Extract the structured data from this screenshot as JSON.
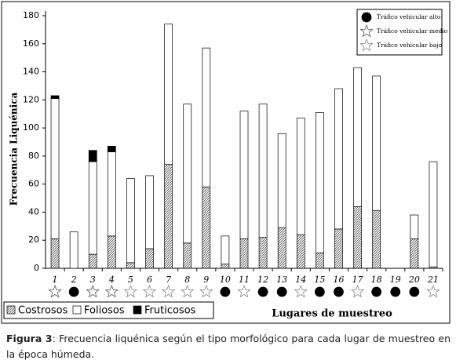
{
  "chart_data": {
    "type": "bar",
    "stacked": true,
    "y_label": "Frecuencia Liquénica",
    "x_label": "Lugares de muestreo",
    "categories": [
      "1",
      "2",
      "3",
      "4",
      "5",
      "6",
      "7",
      "8",
      "9",
      "10",
      "11",
      "12",
      "13",
      "14",
      "15",
      "16",
      "17",
      "18",
      "19",
      "20",
      "21"
    ],
    "series": [
      {
        "name": "Costrosos",
        "color": "#888888",
        "hatch": true,
        "values": [
          21,
          0,
          10,
          23,
          4,
          14,
          74,
          18,
          58,
          3,
          21,
          22,
          29,
          24,
          11,
          28,
          44,
          41,
          0,
          21,
          1
        ]
      },
      {
        "name": "Foliosos",
        "color": "#ffffff",
        "hatch": false,
        "values": [
          100,
          26,
          66,
          60,
          60,
          52,
          100,
          99,
          99,
          20,
          91,
          95,
          67,
          83,
          100,
          100,
          99,
          96,
          0,
          17,
          75
        ]
      },
      {
        "name": "Fruticosos",
        "color": "#000000",
        "hatch": false,
        "values": [
          2,
          0,
          8,
          4,
          0,
          0,
          0,
          0,
          0,
          0,
          0,
          0,
          0,
          0,
          0,
          0,
          0,
          0,
          0,
          0,
          0
        ]
      }
    ],
    "ylim": [
      0,
      180
    ],
    "yticks": [
      0,
      20,
      40,
      60,
      80,
      100,
      120,
      140,
      160,
      180
    ],
    "traffic_legend": [
      {
        "label": "Tráfico vehicular alto",
        "marker": "circle"
      },
      {
        "label": "Tráfico vehicular medio",
        "marker": "star"
      },
      {
        "label": "Tráfico vehicular bajo",
        "marker": "star"
      }
    ],
    "site_traffic": [
      1,
      0,
      1,
      1,
      2,
      2,
      2,
      2,
      2,
      0,
      2,
      0,
      0,
      2,
      0,
      0,
      2,
      0,
      0,
      0,
      2
    ]
  },
  "caption": {
    "label": "Figura 3",
    "text": ": Frecuencia liquénica según el tipo morfológico para cada lugar de muestreo en la época húmeda."
  }
}
